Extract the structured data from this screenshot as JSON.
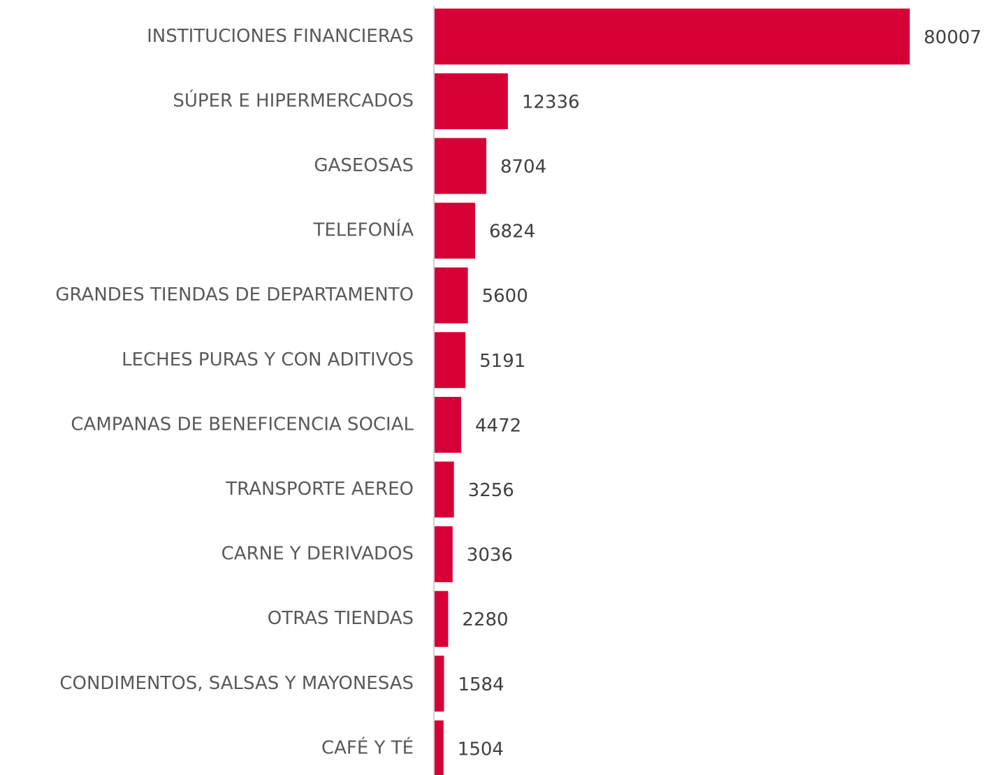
{
  "chart_data": {
    "type": "hbar",
    "categories": [
      "INSTITUCIONES FINANCIERAS",
      "SÚPER E HIPERMERCADOS",
      "GASEOSAS",
      "TELEFONÍA",
      "GRANDES TIENDAS DE DEPARTAMENTO",
      "LECHES PURAS Y CON ADITIVOS",
      "CAMPANAS DE BENEFICENCIA SOCIAL",
      "TRANSPORTE AEREO",
      "CARNE Y DERIVADOS",
      "OTRAS TIENDAS",
      "CONDIMENTOS, SALSAS Y MAYONESAS",
      "CAFÉ Y TÉ"
    ],
    "values": [
      80007,
      12336,
      8704,
      6824,
      5600,
      5191,
      4472,
      3256,
      3036,
      2280,
      1584,
      1504
    ],
    "color": "#d70036"
  }
}
